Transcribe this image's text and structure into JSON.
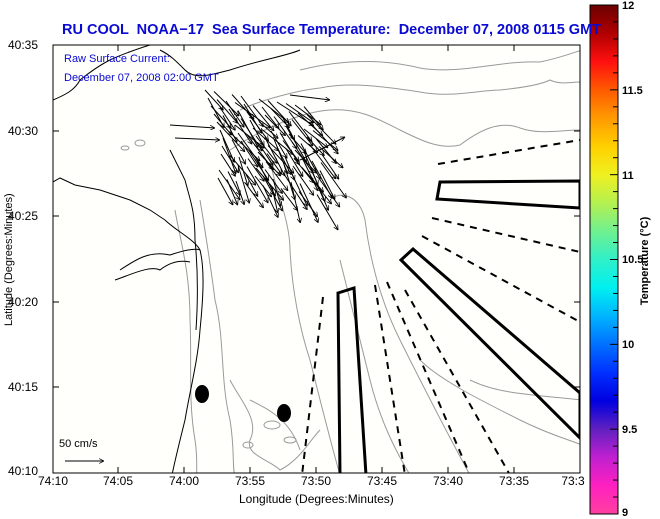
{
  "header": {
    "title": "RU COOL  NOAA−17  Sea Surface Temperature:  December 07, 2008 0115 GMT"
  },
  "annotation": {
    "line1": "Raw Surface Current:",
    "line2": "December 07, 2008 02:00 GMT"
  },
  "axes": {
    "xlabel": "Longitude (Degrees:Minutes)",
    "ylabel": "Latitude (Degrees:Minutes)",
    "x_ticks": [
      "74:10",
      "74:05",
      "74:00",
      "73:55",
      "73:50",
      "73:45",
      "73:40",
      "73:35",
      "73:3"
    ],
    "y_ticks": [
      "40:35",
      "40:30",
      "40:25",
      "40:20",
      "40:15",
      "40:10"
    ]
  },
  "scale_vector": {
    "label": "50 cm/s"
  },
  "colorbar": {
    "label": "Temperature (°C)",
    "ticks": [
      "12",
      "11.5",
      "11",
      "10.5",
      "10",
      "9.5",
      "9"
    ],
    "range": [
      9,
      12
    ],
    "colors": [
      "#6b0000",
      "#b00000",
      "#ff1010",
      "#ff5a00",
      "#ff9a00",
      "#ffd000",
      "#f0f020",
      "#b4f050",
      "#70f090",
      "#30f0c8",
      "#00f0f0",
      "#00b4ff",
      "#0070ff",
      "#0030ff",
      "#0000e0",
      "#6020c0",
      "#c020d0",
      "#ff20c0",
      "#ff40a0"
    ]
  },
  "map": {
    "background_color": "#fffffc",
    "land_outline_color": "#000000",
    "bathymetry_color": "#999999",
    "markers": [
      "mooring-1",
      "mooring-2"
    ]
  }
}
